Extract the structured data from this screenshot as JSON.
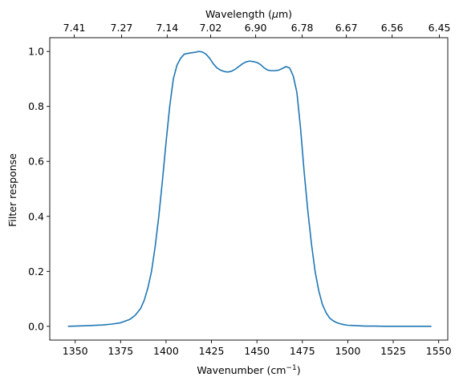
{
  "chart_data": {
    "type": "line",
    "xlabel": "Wavenumber (cm",
    "xlabel_sup": "−1",
    "xlabel_end": ")",
    "ylabel": "Filter response",
    "top_xlabel": "Wavelength (",
    "top_xlabel_mu": "μ",
    "top_xlabel_end": "m)",
    "xlim": [
      1336,
      1555
    ],
    "ylim": [
      -0.05,
      1.05
    ],
    "x_ticks": [
      1350,
      1375,
      1400,
      1425,
      1450,
      1475,
      1500,
      1525,
      1550
    ],
    "y_ticks": [
      0.0,
      0.2,
      0.4,
      0.6,
      0.8,
      1.0
    ],
    "y_tick_labels": [
      "0.0",
      "0.2",
      "0.4",
      "0.6",
      "0.8",
      "1.0"
    ],
    "top_ticks": [
      {
        "label": "7.41",
        "wavenumber": 1349.5
      },
      {
        "label": "7.27",
        "wavenumber": 1375.5
      },
      {
        "label": "7.14",
        "wavenumber": 1400.6
      },
      {
        "label": "7.02",
        "wavenumber": 1424.5
      },
      {
        "label": "6.90",
        "wavenumber": 1449.3
      },
      {
        "label": "6.78",
        "wavenumber": 1474.9
      },
      {
        "label": "6.67",
        "wavenumber": 1499.2
      },
      {
        "label": "6.56",
        "wavenumber": 1524.4
      },
      {
        "label": "6.45",
        "wavenumber": 1550.4
      }
    ],
    "series": [
      {
        "color": "#1f77b4",
        "x": [
          1346,
          1355,
          1365,
          1370,
          1375,
          1380,
          1383,
          1386,
          1388,
          1390,
          1392,
          1394,
          1396,
          1398,
          1400,
          1402,
          1404,
          1406,
          1408,
          1410,
          1412,
          1414,
          1416,
          1418,
          1420,
          1422,
          1424,
          1426,
          1428,
          1430,
          1432,
          1434,
          1436,
          1438,
          1440,
          1442,
          1444,
          1446,
          1448,
          1450,
          1452,
          1454,
          1456,
          1458,
          1460,
          1462,
          1464,
          1466,
          1468,
          1470,
          1472,
          1474,
          1476,
          1478,
          1480,
          1482,
          1484,
          1486,
          1488,
          1490,
          1492,
          1494,
          1496,
          1498,
          1500,
          1503,
          1506,
          1510,
          1515,
          1520,
          1530,
          1546
        ],
        "y": [
          0.0,
          0.002,
          0.005,
          0.008,
          0.013,
          0.025,
          0.04,
          0.065,
          0.095,
          0.14,
          0.2,
          0.29,
          0.4,
          0.53,
          0.67,
          0.8,
          0.9,
          0.95,
          0.975,
          0.99,
          0.993,
          0.995,
          0.997,
          1.0,
          0.998,
          0.99,
          0.975,
          0.955,
          0.94,
          0.932,
          0.927,
          0.925,
          0.928,
          0.935,
          0.945,
          0.955,
          0.962,
          0.965,
          0.963,
          0.96,
          0.952,
          0.94,
          0.932,
          0.93,
          0.93,
          0.932,
          0.938,
          0.945,
          0.94,
          0.91,
          0.85,
          0.72,
          0.56,
          0.42,
          0.3,
          0.2,
          0.13,
          0.08,
          0.05,
          0.03,
          0.02,
          0.013,
          0.009,
          0.006,
          0.004,
          0.003,
          0.002,
          0.001,
          0.001,
          0.0,
          0.0,
          0.0
        ]
      }
    ]
  }
}
